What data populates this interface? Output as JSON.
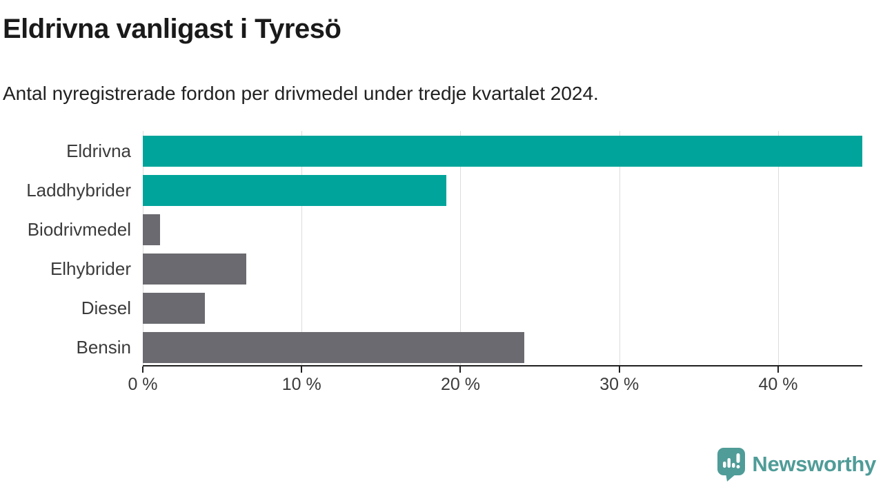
{
  "title": "Eldrivna vanligast i Tyresö",
  "subtitle": "Antal nyregistrerade fordon per drivmedel under tredje kvartalet 2024.",
  "chart_data": {
    "type": "bar",
    "orientation": "horizontal",
    "categories": [
      "Eldrivna",
      "Laddhybrider",
      "Biodrivmedel",
      "Elhybrider",
      "Diesel",
      "Bensin"
    ],
    "values": [
      45.3,
      19.1,
      1.1,
      6.5,
      3.9,
      24.0
    ],
    "unit": "%",
    "xlim": [
      0,
      45.3
    ],
    "x_ticks": [
      0,
      10,
      20,
      30,
      40
    ],
    "x_tick_labels": [
      "0 %",
      "10 %",
      "20 %",
      "30 %",
      "40 %"
    ],
    "bar_colors": [
      "#00A49A",
      "#00A49A",
      "#6A6A70",
      "#6A6A70",
      "#6A6A70",
      "#6A6A70"
    ],
    "highlight_color": "#00A49A",
    "default_color": "#6A6A70",
    "gridline_color": "#DCDCDC",
    "axis_color": "#1F1F1F",
    "grid": true,
    "legend": false,
    "title": "Eldrivna vanligast i Tyresö",
    "xlabel": "",
    "ylabel": ""
  },
  "footer": {
    "brand": "Newsworthy",
    "brand_color": "#4F9C98",
    "logo_icon": "newsworthy-speech-bubble-chart-icon"
  }
}
